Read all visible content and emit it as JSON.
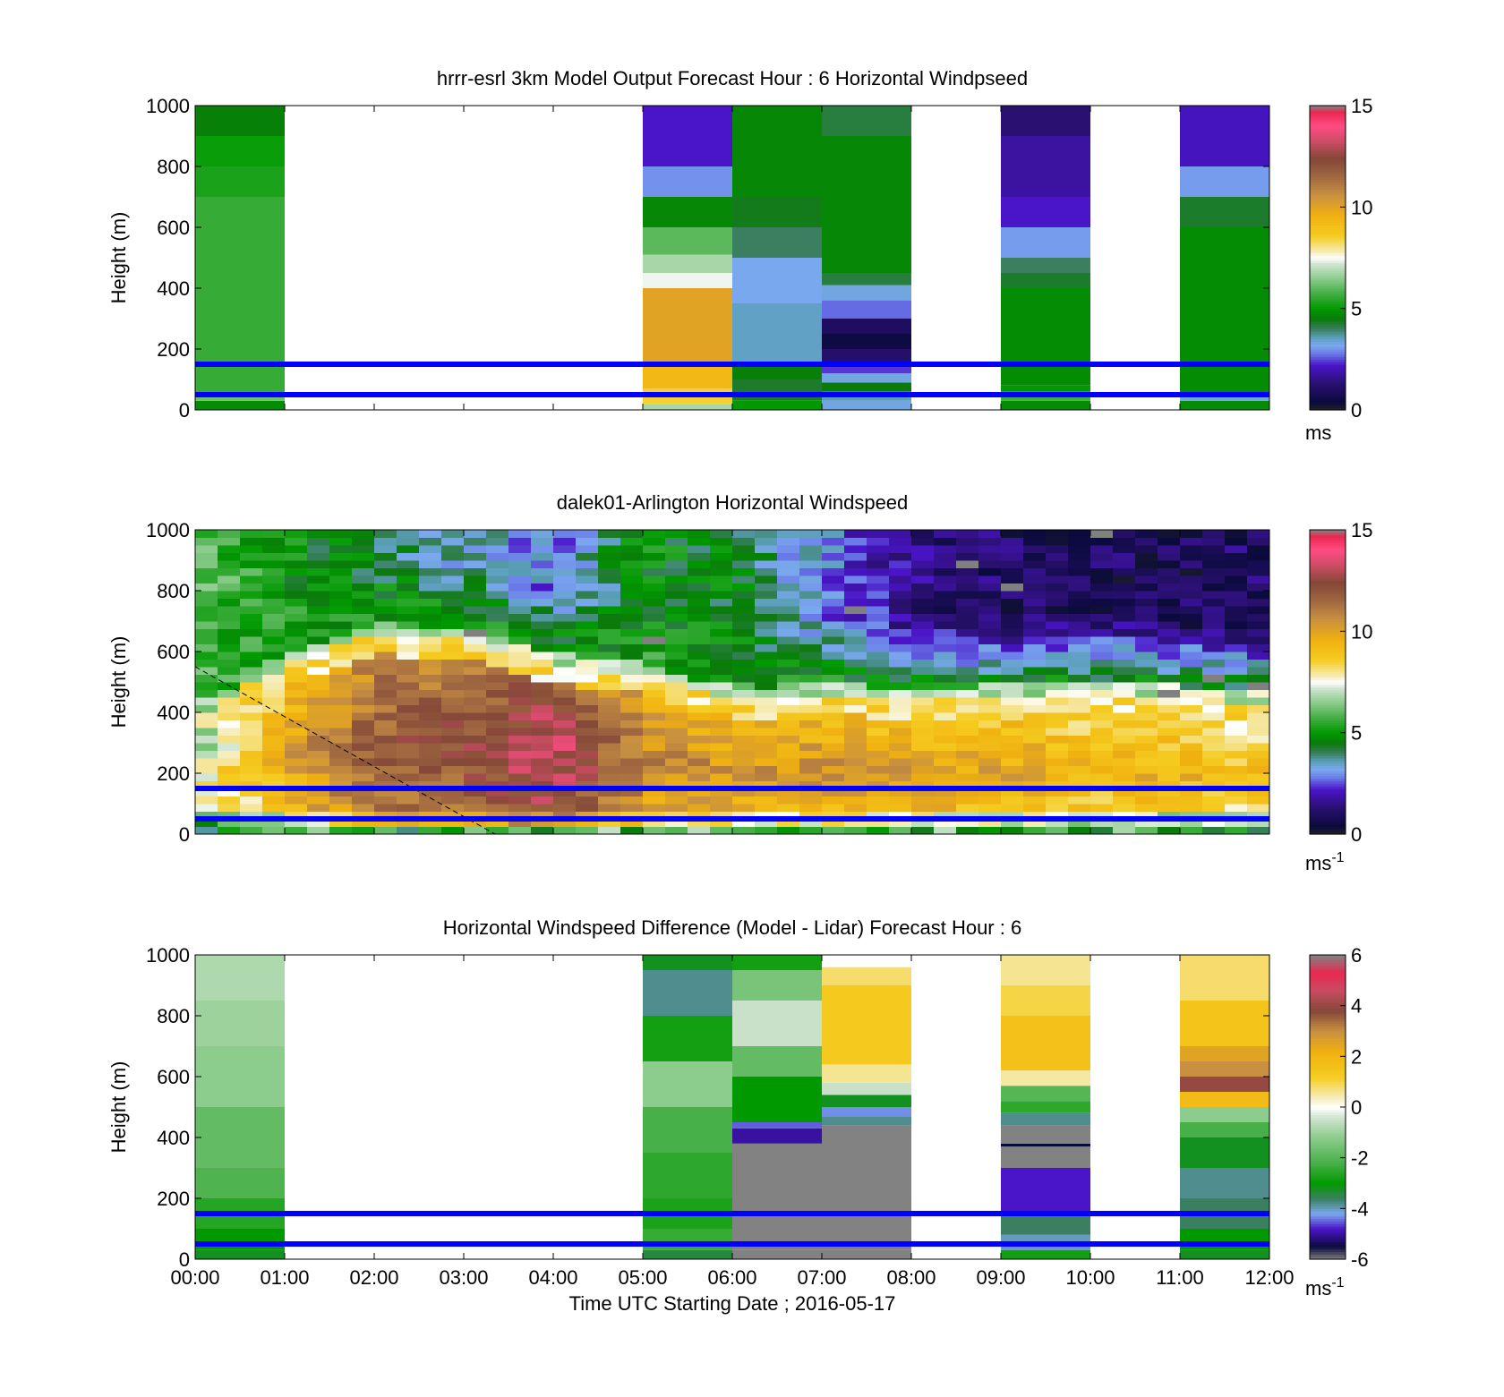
{
  "shared": {
    "xlabel": "Time UTC  Starting Date ; 2016-05-17",
    "xticks": [
      "00:00",
      "01:00",
      "02:00",
      "03:00",
      "04:00",
      "05:00",
      "06:00",
      "07:00",
      "08:00",
      "09:00",
      "10:00",
      "11:00",
      "12:00"
    ],
    "xlim": [
      0,
      12
    ],
    "ylabel": "Height (m)",
    "ylim": [
      0,
      1000
    ],
    "yticks": [
      0,
      200,
      400,
      600,
      800,
      1000
    ],
    "reference_lines_m": [
      50,
      150
    ],
    "reference_line_color": "#0000ff"
  },
  "chart_data": [
    {
      "type": "heatmap",
      "title": "hrrr-esrl 3km Model Output   Forecast Hour : 6 Horizontal Windpseed",
      "ylabel": "Height (m)",
      "colorbar": {
        "label": "ms",
        "sup": "",
        "vmin": 0,
        "vmax": 15,
        "ticks": [
          0,
          5,
          10,
          15
        ],
        "palette": "speed"
      },
      "columns": [
        {
          "hour": 0,
          "values": [
            [
              0,
              30,
              4.8
            ],
            [
              30,
              45,
              6.2
            ],
            [
              45,
              700,
              5.6
            ],
            [
              700,
              800,
              5.3
            ],
            [
              800,
              900,
              5.1
            ],
            [
              900,
              1000,
              4.6
            ]
          ]
        },
        {
          "hour": 5,
          "values": [
            [
              0,
              20,
              6.8
            ],
            [
              20,
              70,
              8.5
            ],
            [
              70,
              150,
              9.3
            ],
            [
              150,
              400,
              10.0
            ],
            [
              400,
              450,
              7.4
            ],
            [
              450,
              510,
              6.8
            ],
            [
              510,
              600,
              6.0
            ],
            [
              600,
              700,
              4.7
            ],
            [
              700,
              800,
              3.0
            ],
            [
              800,
              1000,
              2.2
            ]
          ]
        },
        {
          "hour": 6,
          "values": [
            [
              0,
              30,
              5.0
            ],
            [
              30,
              100,
              4.3
            ],
            [
              100,
              150,
              4.6
            ],
            [
              150,
              350,
              3.5
            ],
            [
              350,
              500,
              3.2
            ],
            [
              500,
              600,
              4.0
            ],
            [
              600,
              700,
              4.4
            ],
            [
              700,
              1000,
              4.7
            ]
          ]
        },
        {
          "hour": 7,
          "values": [
            [
              0,
              30,
              3.3
            ],
            [
              30,
              60,
              3.6
            ],
            [
              60,
              90,
              4.5
            ],
            [
              90,
              120,
              3.3
            ],
            [
              120,
              150,
              2.4
            ],
            [
              150,
              200,
              1.2
            ],
            [
              200,
              250,
              0.5
            ],
            [
              250,
              300,
              1.0
            ],
            [
              300,
              360,
              2.7
            ],
            [
              360,
              410,
              3.3
            ],
            [
              410,
              450,
              4.2
            ],
            [
              450,
              900,
              4.7
            ],
            [
              900,
              1000,
              4.2
            ]
          ]
        },
        {
          "hour": 9,
          "values": [
            [
              0,
              30,
              4.8
            ],
            [
              30,
              60,
              5.7
            ],
            [
              60,
              80,
              5.0
            ],
            [
              80,
              400,
              4.8
            ],
            [
              400,
              450,
              4.3
            ],
            [
              450,
              500,
              4.0
            ],
            [
              500,
              600,
              3.1
            ],
            [
              600,
              700,
              2.2
            ],
            [
              700,
              900,
              1.8
            ],
            [
              900,
              1000,
              1.3
            ]
          ]
        },
        {
          "hour": 11,
          "values": [
            [
              0,
              30,
              4.8
            ],
            [
              30,
              50,
              3.3
            ],
            [
              50,
              150,
              4.8
            ],
            [
              150,
              550,
              4.8
            ],
            [
              550,
              600,
              4.8
            ],
            [
              600,
              700,
              4.3
            ],
            [
              700,
              800,
              3.1
            ],
            [
              800,
              1000,
              2.1
            ]
          ]
        }
      ]
    },
    {
      "type": "heatmap",
      "title": "dalek01-Arlington  Horizontal Windspeed",
      "ylabel": "Height (m)",
      "colorbar": {
        "label": "ms",
        "sup": "-1",
        "vmin": 0,
        "vmax": 15,
        "ticks": [
          0,
          5,
          10,
          15
        ],
        "palette": "speed"
      },
      "column_step_h": 0.25,
      "level_step_m": 25,
      "profile_times_h": [
        0,
        1,
        2,
        3,
        4,
        5,
        6,
        7,
        8,
        9,
        10,
        11,
        12
      ],
      "jet_top_m": [
        380,
        560,
        650,
        640,
        560,
        520,
        440,
        460,
        440,
        450,
        470,
        450,
        420
      ],
      "jet_peak": [
        7.5,
        10.0,
        12.0,
        12.3,
        13.5,
        11.0,
        10.5,
        10.5,
        10.0,
        10.0,
        9.5,
        9.5,
        9.0
      ],
      "aloft_speed": [
        6.0,
        5.0,
        4.2,
        3.5,
        2.8,
        4.8,
        4.5,
        3.0,
        1.5,
        1.0,
        1.0,
        0.9,
        1.2
      ],
      "missing_color": "#808080",
      "diagonal_line": {
        "from": [
          0,
          550
        ],
        "to": [
          3.35,
          0
        ],
        "style": "dashed"
      }
    },
    {
      "type": "heatmap",
      "title": "Horizontal Windspeed Difference (Model - Lidar) Forecast Hour : 6",
      "ylabel": "Height (m)",
      "colorbar": {
        "label": "ms",
        "sup": "-1",
        "vmin": -6,
        "vmax": 6,
        "ticks": [
          -6,
          -4,
          -2,
          0,
          2,
          4,
          6
        ],
        "palette": "diff"
      },
      "columns": [
        {
          "hour": 0,
          "values": [
            [
              0,
              30,
              -3.2
            ],
            [
              30,
              100,
              -3.0
            ],
            [
              100,
              200,
              -2.6
            ],
            [
              200,
              300,
              -2.1
            ],
            [
              300,
              500,
              -1.8
            ],
            [
              500,
              700,
              -1.2
            ],
            [
              700,
              850,
              -1.0
            ],
            [
              850,
              1000,
              -0.8
            ]
          ]
        },
        {
          "hour": 5,
          "values": [
            [
              0,
              30,
              -3.4
            ],
            [
              30,
              100,
              -2.4
            ],
            [
              100,
              200,
              -2.7
            ],
            [
              200,
              350,
              -2.5
            ],
            [
              350,
              500,
              -2.2
            ],
            [
              500,
              650,
              -1.2
            ],
            [
              650,
              800,
              -2.8
            ],
            [
              800,
              950,
              -3.8
            ],
            [
              950,
              1000,
              -3.2
            ]
          ]
        },
        {
          "hour": 6,
          "values": [
            [
              0,
              30,
              -9
            ],
            [
              30,
              380,
              -9
            ],
            [
              380,
              430,
              -5.0
            ],
            [
              430,
              450,
              -4.5
            ],
            [
              450,
              600,
              -3.0
            ],
            [
              600,
              700,
              -1.8
            ],
            [
              700,
              850,
              -0.5
            ],
            [
              850,
              950,
              -1.5
            ],
            [
              950,
              1000,
              -2.8
            ]
          ]
        },
        {
          "hour": 7,
          "values": [
            [
              0,
              30,
              -9
            ],
            [
              30,
              440,
              -9
            ],
            [
              440,
              470,
              -3.8
            ],
            [
              470,
              500,
              -4.3
            ],
            [
              500,
              540,
              -3.2
            ],
            [
              540,
              580,
              -0.5
            ],
            [
              580,
              640,
              0.6
            ],
            [
              640,
              900,
              1.3
            ],
            [
              900,
              960,
              0.8
            ],
            [
              960,
              1000,
              0.0
            ]
          ]
        },
        {
          "hour": 9,
          "values": [
            [
              0,
              30,
              -2.8
            ],
            [
              30,
              80,
              -4.0
            ],
            [
              80,
              150,
              -3.6
            ],
            [
              150,
              300,
              -4.8
            ],
            [
              300,
              370,
              -9
            ],
            [
              370,
              380,
              -5.5
            ],
            [
              380,
              440,
              -9
            ],
            [
              440,
              480,
              -3.8
            ],
            [
              480,
              520,
              -2.5
            ],
            [
              520,
              570,
              -2.0
            ],
            [
              570,
              620,
              0.5
            ],
            [
              620,
              800,
              1.6
            ],
            [
              800,
              900,
              1.0
            ],
            [
              900,
              1000,
              0.6
            ]
          ]
        },
        {
          "hour": 11,
          "values": [
            [
              0,
              30,
              -3.2
            ],
            [
              30,
              100,
              -3.0
            ],
            [
              100,
              200,
              -3.6
            ],
            [
              200,
              300,
              -3.8
            ],
            [
              300,
              400,
              -3.2
            ],
            [
              400,
              450,
              -2.2
            ],
            [
              450,
              500,
              -1.2
            ],
            [
              500,
              550,
              1.8
            ],
            [
              550,
              600,
              4.0
            ],
            [
              600,
              650,
              3.0
            ],
            [
              650,
              700,
              2.5
            ],
            [
              700,
              850,
              1.5
            ],
            [
              850,
              1000,
              0.8
            ]
          ]
        }
      ]
    }
  ]
}
